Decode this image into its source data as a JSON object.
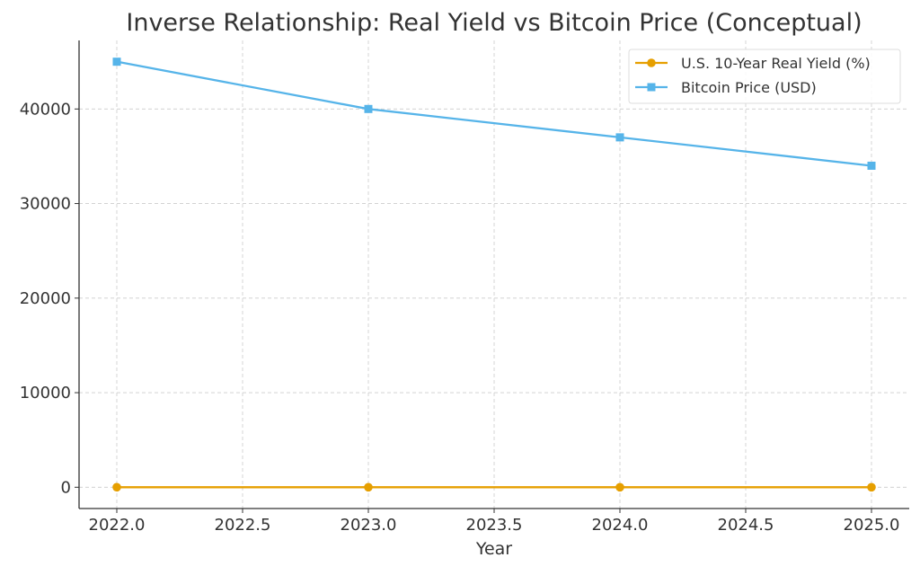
{
  "chart_data": {
    "type": "line",
    "title": "Inverse Relationship: Real Yield vs Bitcoin Price (Conceptual)",
    "xlabel": "Year",
    "ylabel": "",
    "x": [
      2022,
      2023,
      2024,
      2025
    ],
    "xlim": [
      2021.85,
      2025.15
    ],
    "ylim": [
      -2250,
      47250
    ],
    "xticks": [
      2022.0,
      2022.5,
      2023.0,
      2023.5,
      2024.0,
      2024.5,
      2025.0
    ],
    "xtick_labels": [
      "2022.0",
      "2022.5",
      "2023.0",
      "2023.5",
      "2024.0",
      "2024.5",
      "2025.0"
    ],
    "yticks": [
      0,
      10000,
      20000,
      30000,
      40000
    ],
    "ytick_labels": [
      "0",
      "10000",
      "20000",
      "30000",
      "40000"
    ],
    "grid": true,
    "legend_position": "top-right",
    "series": [
      {
        "name": "U.S. 10-Year Real Yield (%)",
        "values": [
          1.5,
          1.8,
          2.0,
          2.2
        ],
        "color": "#E69F00",
        "marker": "circle"
      },
      {
        "name": "Bitcoin Price (USD)",
        "values": [
          45000,
          40000,
          37000,
          34000
        ],
        "color": "#56B4E9",
        "marker": "square"
      }
    ]
  }
}
